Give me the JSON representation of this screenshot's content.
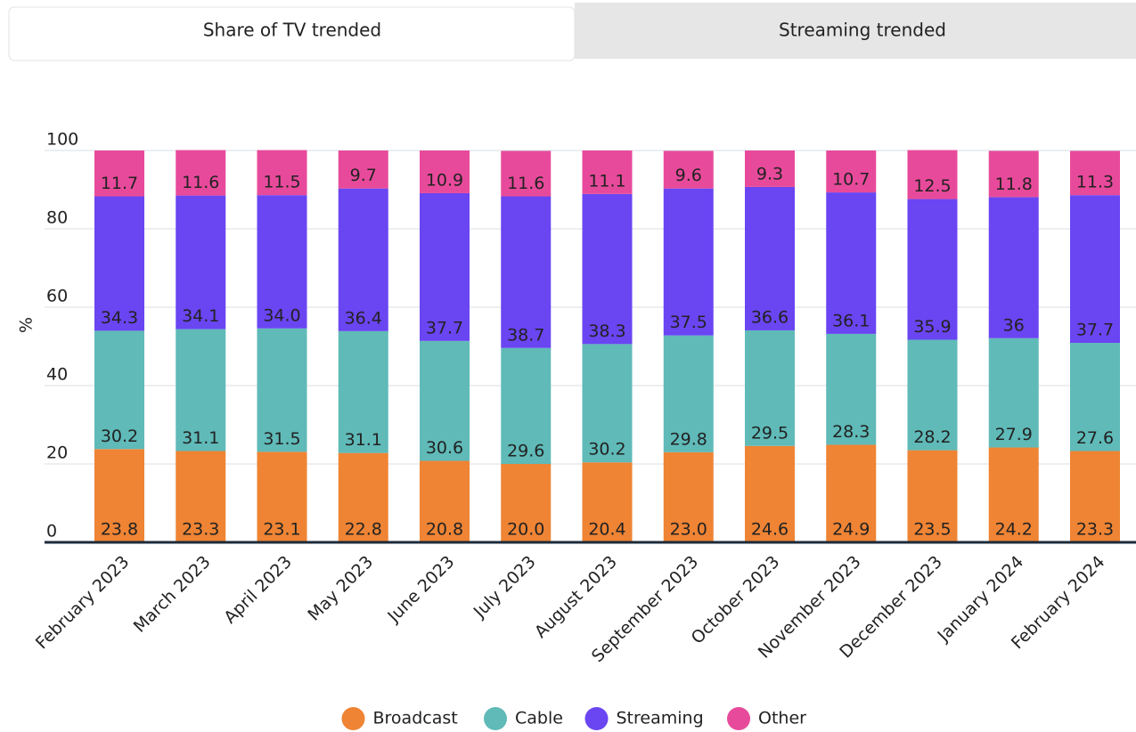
{
  "tabs": [
    "Share of TV trended",
    "Streaming trended"
  ],
  "chart_data": {
    "type": "stacked_bar",
    "y_label": "%",
    "categories": [
      "February 2023",
      "March 2023",
      "April 2023",
      "May 2023",
      "June 2023",
      "July 2023",
      "August 2023",
      "September 2023",
      "October 2023",
      "November 2023",
      "December 2023",
      "January 2024",
      "February 2024"
    ],
    "series": [
      {
        "name": "Broadcast",
        "color": "#ee8434",
        "label_color": "#111111",
        "values": [
          23.8,
          23.3,
          23.1,
          22.8,
          20.8,
          20.0,
          20.4,
          23.0,
          24.6,
          24.9,
          23.5,
          24.2,
          23.3
        ],
        "value_labels": [
          "23.8",
          "23.3",
          "23.1",
          "22.8",
          "20.8",
          "20.0",
          "20.4",
          "23.0",
          "24.6",
          "24.9",
          "23.5",
          "24.2",
          "23.3"
        ]
      },
      {
        "name": "Cable",
        "color": "#5fbab8",
        "label_color": "#111111",
        "values": [
          30.2,
          31.1,
          31.5,
          31.1,
          30.6,
          29.6,
          30.2,
          29.8,
          29.5,
          28.3,
          28.2,
          27.9,
          27.6
        ],
        "value_labels": [
          "30.2",
          "31.1",
          "31.5",
          "31.1",
          "30.6",
          "29.6",
          "30.2",
          "29.8",
          "29.5",
          "28.3",
          "28.2",
          "27.9",
          "27.6"
        ]
      },
      {
        "name": "Streaming",
        "color": "#6a45f2",
        "label_color": "#ffffff",
        "values": [
          34.3,
          34.1,
          34.0,
          36.4,
          37.7,
          38.7,
          38.3,
          37.5,
          36.6,
          36.1,
          35.9,
          36,
          37.7
        ],
        "value_labels": [
          "34.3",
          "34.1",
          "34.0",
          "36.4",
          "37.7",
          "38.7",
          "38.3",
          "37.5",
          "36.6",
          "36.1",
          "35.9",
          "36",
          "37.7"
        ]
      },
      {
        "name": "Other",
        "color": "#e84a9b",
        "label_color": "#ffffff",
        "values": [
          11.7,
          11.6,
          11.5,
          9.7,
          10.9,
          11.6,
          11.1,
          9.6,
          9.3,
          10.7,
          12.5,
          11.8,
          11.3
        ],
        "value_labels": [
          "11.7",
          "11.6",
          "11.5",
          "9.7",
          "10.9",
          "11.6",
          "11.1",
          "9.6",
          "9.3",
          "10.7",
          "12.5",
          "11.8",
          "11.3"
        ]
      }
    ],
    "ylim": [
      0,
      100
    ],
    "yticks": [
      0,
      20,
      40,
      60,
      80,
      100
    ],
    "grid": true,
    "legend": "bottom"
  }
}
